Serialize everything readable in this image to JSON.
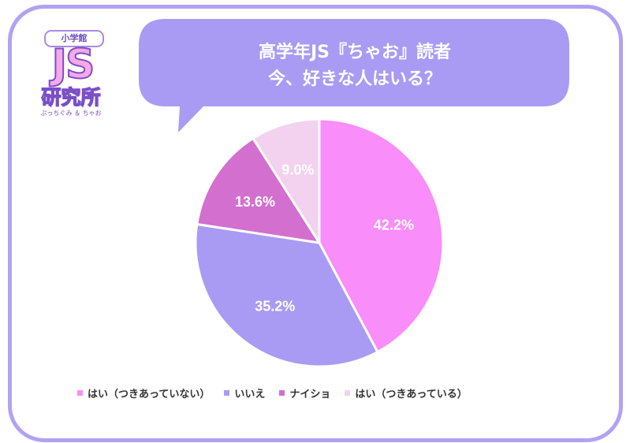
{
  "title_lines": [
    "高学年JS『ちゃお』読者",
    "今、好きな人はいる？"
  ],
  "logo": {
    "top": "小学館",
    "main": "JS",
    "lab": "研究所",
    "sub": "ぷっちぐみ ＆ ちゃお"
  },
  "colors": {
    "frame": "#b2a2f2",
    "bubble": "#a99bf3",
    "label_text": "#ffffff"
  },
  "chart_data": {
    "type": "pie",
    "title": "高学年JS『ちゃお』読者 今、好きな人はいる？",
    "slices": [
      {
        "label": "はい（つきあっていない）",
        "value": 42.2,
        "display": "42.2%",
        "color": "#f98df9"
      },
      {
        "label": "いいえ",
        "value": 35.2,
        "display": "35.2%",
        "color": "#a99bf3"
      },
      {
        "label": "ナイショ",
        "value": 13.6,
        "display": "13.6%",
        "color": "#d26fcf"
      },
      {
        "label": "はい（つきあっている）",
        "value": 9.0,
        "display": "9.0%",
        "color": "#f2d2ef"
      }
    ],
    "start_angle": "12 o'clock",
    "direction": "clockwise",
    "legend_position": "bottom"
  }
}
